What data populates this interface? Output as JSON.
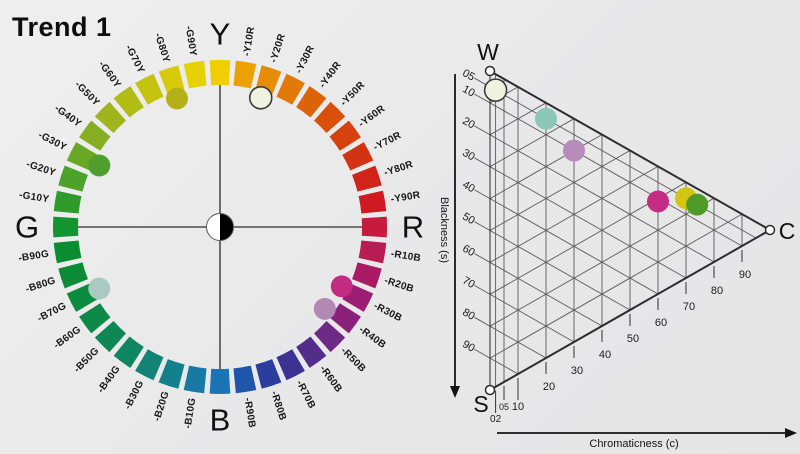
{
  "title": "Trend 1",
  "background": "#e9e9ea",
  "text_color": "#131313",
  "chart_data": [
    {
      "type": "ncs-hue-circle",
      "name": "NCS hue circle",
      "cardinal_labels": [
        "Y",
        "R",
        "B",
        "G"
      ],
      "center_marker": "half-white-half-black-circle",
      "segments": [
        {
          "label": "Y",
          "color": "#f1cd01"
        },
        {
          "label": "-Y10R",
          "color": "#eba101"
        },
        {
          "label": "-Y20R",
          "color": "#e68d06"
        },
        {
          "label": "-Y30R",
          "color": "#e27908"
        },
        {
          "label": "-Y40R",
          "color": "#dd630a"
        },
        {
          "label": "-Y50R",
          "color": "#d9500c"
        },
        {
          "label": "-Y60R",
          "color": "#d6420f"
        },
        {
          "label": "-Y70R",
          "color": "#d33313"
        },
        {
          "label": "-Y80R",
          "color": "#d22319"
        },
        {
          "label": "-Y90R",
          "color": "#d01a22"
        },
        {
          "label": "R",
          "color": "#c71a3d"
        },
        {
          "label": "-R10B",
          "color": "#b91b53"
        },
        {
          "label": "-R20B",
          "color": "#a91c63"
        },
        {
          "label": "-R30B",
          "color": "#9b1e72"
        },
        {
          "label": "-R40B",
          "color": "#8a2079"
        },
        {
          "label": "-R50B",
          "color": "#6c2a84"
        },
        {
          "label": "-R60B",
          "color": "#522e8a"
        },
        {
          "label": "-R70B",
          "color": "#3b3293"
        },
        {
          "label": "-R80B",
          "color": "#2c3e9d"
        },
        {
          "label": "-R90B",
          "color": "#1f55ab"
        },
        {
          "label": "B",
          "color": "#1a74b6"
        },
        {
          "label": "-B10G",
          "color": "#1779a4"
        },
        {
          "label": "-B20G",
          "color": "#12818b"
        },
        {
          "label": "-B30G",
          "color": "#128375"
        },
        {
          "label": "-B40G",
          "color": "#108562"
        },
        {
          "label": "-B50G",
          "color": "#0e8754"
        },
        {
          "label": "-B60G",
          "color": "#0d8948"
        },
        {
          "label": "-B70G",
          "color": "#0c8a3e"
        },
        {
          "label": "-B80G",
          "color": "#0c8b37"
        },
        {
          "label": "-B90G",
          "color": "#0c8c31"
        },
        {
          "label": "G",
          "color": "#12942e"
        },
        {
          "label": "-G10Y",
          "color": "#2f9b2b"
        },
        {
          "label": "-G20Y",
          "color": "#4da229"
        },
        {
          "label": "-G30Y",
          "color": "#68a825"
        },
        {
          "label": "-G40Y",
          "color": "#85ae20"
        },
        {
          "label": "-G50Y",
          "color": "#9eb51b"
        },
        {
          "label": "-G60Y",
          "color": "#b2bc16"
        },
        {
          "label": "-G70Y",
          "color": "#c5c310"
        },
        {
          "label": "-G80Y",
          "color": "#d7ca0a"
        },
        {
          "label": "-G90Y",
          "color": "#e6d104"
        }
      ],
      "dots": [
        {
          "name": "olive",
          "nearest_hue": "G80Y",
          "angle_deg": 341.5,
          "radius": 135.5,
          "color": "#b5b017",
          "outlined": false
        },
        {
          "name": "cream",
          "nearest_hue": "Y20R",
          "angle_deg": 17.5,
          "radius": 135.5,
          "color": "#f0f2e0",
          "outlined": true
        },
        {
          "name": "green",
          "nearest_hue": "G30Y",
          "angle_deg": 297,
          "radius": 135.5,
          "color": "#4f9e2e",
          "outlined": false
        },
        {
          "name": "pale-teal",
          "nearest_hue": "B70G",
          "angle_deg": 243,
          "radius": 135.5,
          "color": "#a9c9c1",
          "outlined": false
        },
        {
          "name": "magenta",
          "nearest_hue": "R30B",
          "angle_deg": 116,
          "radius": 135.5,
          "color": "#c22c80",
          "outlined": false
        },
        {
          "name": "mauve",
          "nearest_hue": "R40B",
          "angle_deg": 128,
          "radius": 133,
          "color": "#b289b3",
          "outlined": false
        }
      ]
    },
    {
      "type": "ncs-triangle",
      "name": "NCS blackness-chromaticness triangle",
      "vertex_labels": {
        "top": "W",
        "bottom": "S",
        "right": "C"
      },
      "y_axis_label": "Blackness (s)",
      "x_axis_label": "Chromaticness (c)",
      "blackness_ticks": [
        5,
        10,
        20,
        30,
        40,
        50,
        60,
        70,
        80,
        90
      ],
      "chromaticness_ticks": [
        2,
        5,
        10,
        20,
        30,
        40,
        50,
        60,
        70,
        80,
        90
      ],
      "whiteness_gridlines": [
        10,
        20,
        30,
        40,
        50,
        60,
        70,
        80,
        90
      ],
      "points": [
        {
          "name": "cream",
          "chromaticness": 2,
          "blackness": 5,
          "color": "#f0f2e0",
          "outlined": true
        },
        {
          "name": "teal",
          "chromaticness": 20,
          "blackness": 5,
          "color": "#8cc6b4",
          "outlined": false
        },
        {
          "name": "mauve",
          "chromaticness": 30,
          "blackness": 10,
          "color": "#b88cba",
          "outlined": false
        },
        {
          "name": "magenta",
          "chromaticness": 60,
          "blackness": 11,
          "color": "#c52c86",
          "outlined": false
        },
        {
          "name": "yellow",
          "chromaticness": 70,
          "blackness": 5,
          "color": "#d4c513",
          "outlined": false
        },
        {
          "name": "green",
          "chromaticness": 74,
          "blackness": 5,
          "color": "#4f9a28",
          "outlined": false
        }
      ]
    }
  ]
}
